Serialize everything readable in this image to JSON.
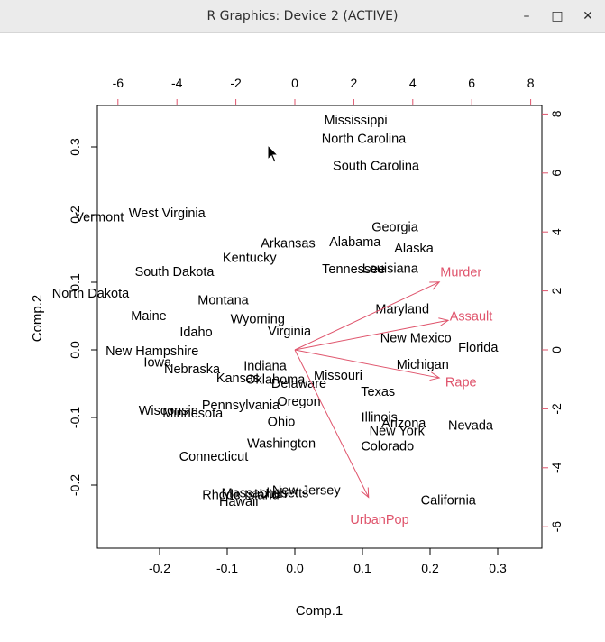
{
  "window": {
    "title": "R Graphics: Device 2 (ACTIVE)",
    "minimize_glyph": "–",
    "maximize_glyph": "□",
    "close_glyph": "✕"
  },
  "chart_data": {
    "type": "biplot",
    "xlabel": "Comp.1",
    "ylabel": "Comp.2",
    "xlim_scores": [
      -0.29,
      0.36
    ],
    "ylim_scores": [
      -0.29,
      0.36
    ],
    "xticks_scores": [
      -0.2,
      -0.1,
      0.0,
      0.1,
      0.2,
      0.3
    ],
    "yticks_scores": [
      -0.2,
      -0.1,
      0.0,
      0.1,
      0.2,
      0.3
    ],
    "xlim_loadings": [
      -6.5,
      8.3
    ],
    "ylim_loadings": [
      -6.5,
      8.3
    ],
    "xticks_loadings": [
      -6,
      -4,
      -2,
      0,
      2,
      4,
      6,
      8
    ],
    "yticks_loadings": [
      -6,
      -4,
      -2,
      0,
      2,
      4,
      6,
      8
    ],
    "vector_color": "#DF536B",
    "points": [
      {
        "label": "Mississippi",
        "x": 0.09,
        "y": 0.34
      },
      {
        "label": "North Carolina",
        "x": 0.102,
        "y": 0.313
      },
      {
        "label": "South Carolina",
        "x": 0.12,
        "y": 0.273
      },
      {
        "label": "West Virginia",
        "x": -0.189,
        "y": 0.203
      },
      {
        "label": "Vermont",
        "x": -0.289,
        "y": 0.197
      },
      {
        "label": "Georgia",
        "x": 0.148,
        "y": 0.182
      },
      {
        "label": "Arkansas",
        "x": -0.01,
        "y": 0.158
      },
      {
        "label": "Alabama",
        "x": 0.089,
        "y": 0.16
      },
      {
        "label": "Alaska",
        "x": 0.176,
        "y": 0.151
      },
      {
        "label": "Kentucky",
        "x": -0.067,
        "y": 0.137
      },
      {
        "label": "Tennessee",
        "x": 0.087,
        "y": 0.12
      },
      {
        "label": "Louisiana",
        "x": 0.141,
        "y": 0.121
      },
      {
        "label": "South Dakota",
        "x": -0.178,
        "y": 0.116
      },
      {
        "label": "North Dakota",
        "x": -0.302,
        "y": 0.084
      },
      {
        "label": "Montana",
        "x": -0.106,
        "y": 0.074
      },
      {
        "label": "Maine",
        "x": -0.216,
        "y": 0.051
      },
      {
        "label": "Maryland",
        "x": 0.159,
        "y": 0.061
      },
      {
        "label": "Wyoming",
        "x": -0.055,
        "y": 0.046
      },
      {
        "label": "Idaho",
        "x": -0.146,
        "y": 0.027
      },
      {
        "label": "Virginia",
        "x": -0.008,
        "y": 0.028
      },
      {
        "label": "New Mexico",
        "x": 0.179,
        "y": 0.018
      },
      {
        "label": "Florida",
        "x": 0.271,
        "y": 0.004
      },
      {
        "label": "New Hampshire",
        "x": -0.211,
        "y": -0.001
      },
      {
        "label": "Iowa",
        "x": -0.203,
        "y": -0.018
      },
      {
        "label": "Michigan",
        "x": 0.189,
        "y": -0.021
      },
      {
        "label": "Nebraska",
        "x": -0.152,
        "y": -0.028
      },
      {
        "label": "Indiana",
        "x": -0.044,
        "y": -0.023
      },
      {
        "label": "Kansas",
        "x": -0.084,
        "y": -0.041
      },
      {
        "label": "Oklahoma",
        "x": -0.029,
        "y": -0.043
      },
      {
        "label": "Missouri",
        "x": 0.064,
        "y": -0.037
      },
      {
        "label": "Delaware",
        "x": 0.006,
        "y": -0.049
      },
      {
        "label": "Texas",
        "x": 0.123,
        "y": -0.061
      },
      {
        "label": "Oregon",
        "x": 0.006,
        "y": -0.076
      },
      {
        "label": "Pennsylvania",
        "x": -0.08,
        "y": -0.081
      },
      {
        "label": "Wisconsin",
        "x": -0.187,
        "y": -0.089
      },
      {
        "label": "Minnesota",
        "x": -0.151,
        "y": -0.093
      },
      {
        "label": "Illinois",
        "x": 0.125,
        "y": -0.099
      },
      {
        "label": "Ohio",
        "x": -0.02,
        "y": -0.106
      },
      {
        "label": "Arizona",
        "x": 0.161,
        "y": -0.108
      },
      {
        "label": "Nevada",
        "x": 0.26,
        "y": -0.111
      },
      {
        "label": "New York",
        "x": 0.151,
        "y": -0.119
      },
      {
        "label": "Colorado",
        "x": 0.137,
        "y": -0.142
      },
      {
        "label": "Washington",
        "x": -0.02,
        "y": -0.138
      },
      {
        "label": "Connecticut",
        "x": -0.12,
        "y": -0.157
      },
      {
        "label": "New Jersey",
        "x": 0.017,
        "y": -0.207
      },
      {
        "label": "Massachusetts",
        "x": -0.044,
        "y": -0.211
      },
      {
        "label": "Utah",
        "x": -0.032,
        "y": -0.212
      },
      {
        "label": "Rhode Island",
        "x": -0.08,
        "y": -0.214
      },
      {
        "label": "Hawaii",
        "x": -0.083,
        "y": -0.224
      },
      {
        "label": "California",
        "x": 0.227,
        "y": -0.222
      }
    ],
    "vectors": [
      {
        "name": "Murder",
        "x": 4.9,
        "y": 2.3
      },
      {
        "name": "Assault",
        "x": 5.2,
        "y": 1.0
      },
      {
        "name": "Rape",
        "x": 4.9,
        "y": -0.95
      },
      {
        "name": "UrbanPop",
        "x": 2.5,
        "y": -5.0
      }
    ]
  }
}
